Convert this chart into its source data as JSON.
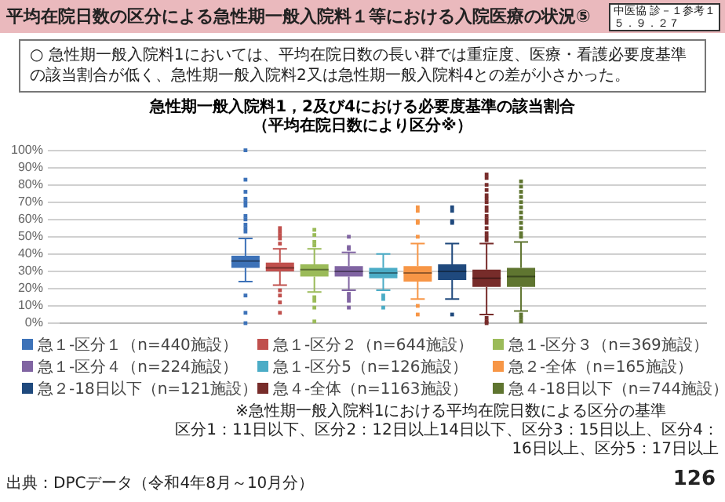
{
  "chart_data": {
    "type": "box",
    "title": "急性期一般入院料1，2及び4における必要度基準の該当割合",
    "subtitle": "（平均在院日数により区分※）",
    "annotations": [
      "平均在院日数の区分による急性期一般入院料１等における入院医療の状況⑤",
      "中医協 診－１参考１",
      "５．９．２７",
      "○ 急性期一般入院料1においては、平均在院日数の長い群では重症度、医療・看護必要度基準の該当割合が低く、急性期一般入院料2又は急性期一般入院料4との差が小さかった。",
      "※急性期一般入院料1における平均在院日数による区分の基準",
      "区分1：11日以下、区分2：12日以上14日以下、区分3：15日以上、区分4：16日以上、区分5：17日以上",
      "出典：DPCデータ（令和4年8月～10月分）",
      "126"
    ],
    "categories": [
      null
    ],
    "series": [
      {
        "name": "急１-区分１（n=440施設）",
        "color": "#3d72b8",
        "boxes": [
          {
            "low": 24,
            "q1": 32,
            "median": 36,
            "q3": 39,
            "high": 49,
            "outliers": [
              100,
              83,
              76,
              72,
              70,
              68,
              62,
              60,
              57,
              55,
              53,
              16,
              6,
              0
            ]
          }
        ]
      },
      {
        "name": "急１-区分２（n=644施設）",
        "color": "#c0504d",
        "boxes": [
          {
            "low": 22,
            "q1": 30,
            "median": 32,
            "q3": 35,
            "high": 43,
            "outliers": [
              55,
              53,
              51,
              49,
              46,
              19,
              16,
              12,
              6
            ]
          }
        ]
      },
      {
        "name": "急１-区分３（n=369施設）",
        "color": "#9bbb59",
        "boxes": [
          {
            "low": 18,
            "q1": 27,
            "median": 31,
            "q3": 34,
            "high": 43,
            "outliers": [
              54,
              51,
              47,
              45,
              15,
              13,
              9,
              1
            ]
          }
        ]
      },
      {
        "name": "急１-区分４（n=224施設）",
        "color": "#8064a2",
        "boxes": [
          {
            "low": 19,
            "q1": 27,
            "median": 30,
            "q3": 33,
            "high": 41,
            "outliers": [
              50,
              44,
              43,
              17,
              15,
              13,
              9
            ]
          }
        ]
      },
      {
        "name": "急１-区分5（n=126施設）",
        "color": "#4bacc6",
        "boxes": [
          {
            "low": 19,
            "q1": 26,
            "median": 29,
            "q3": 32,
            "high": 40,
            "outliers": [
              16,
              14,
              9
            ]
          }
        ]
      },
      {
        "name": "急２-全体（n=165施設）",
        "color": "#f79646",
        "boxes": [
          {
            "low": 14,
            "q1": 24,
            "median": 29,
            "q3": 33,
            "high": 46,
            "outliers": [
              67,
              65,
              59,
              58,
              50,
              10,
              5
            ]
          }
        ]
      },
      {
        "name": "急２-18日以下（n=121施設）",
        "color": "#1f497d",
        "boxes": [
          {
            "low": 14,
            "q1": 25,
            "median": 30,
            "q3": 34,
            "high": 46,
            "outliers": [
              67,
              65,
              59,
              58,
              5
            ]
          }
        ]
      },
      {
        "name": "急４-全体（n=1163施設）",
        "color": "#772c2a",
        "boxes": [
          {
            "low": 5,
            "q1": 21,
            "median": 26,
            "q3": 31,
            "high": 46,
            "outliers": [
              86,
              84,
              80,
              77,
              74,
              72,
              70,
              67,
              65,
              62,
              60,
              58,
              55,
              52,
              50,
              48,
              3,
              1,
              0
            ]
          }
        ]
      },
      {
        "name": "急４-18日以下（n=744施設）",
        "color": "#5f7530",
        "boxes": [
          {
            "low": 7,
            "q1": 21,
            "median": 27,
            "q3": 32,
            "high": 47,
            "outliers": [
              82,
              79,
              76,
              73,
              70,
              67,
              64,
              61,
              58,
              55,
              52,
              50,
              5,
              3,
              1
            ]
          }
        ]
      }
    ],
    "ylim": [
      0,
      100
    ],
    "yticks": [
      {
        "value": 0,
        "label": "0%"
      },
      {
        "value": 10,
        "label": "10%"
      },
      {
        "value": 20,
        "label": "20%"
      },
      {
        "value": 30,
        "label": "30%"
      },
      {
        "value": 40,
        "label": "40%"
      },
      {
        "value": 50,
        "label": "50%"
      },
      {
        "value": 60,
        "label": "60%"
      },
      {
        "value": 70,
        "label": "70%"
      },
      {
        "value": 80,
        "label": "80%"
      },
      {
        "value": 90,
        "label": "90%"
      },
      {
        "value": 100,
        "label": "100%"
      }
    ],
    "grid": "y",
    "legend": "bottom",
    "tick_labels": "y"
  }
}
